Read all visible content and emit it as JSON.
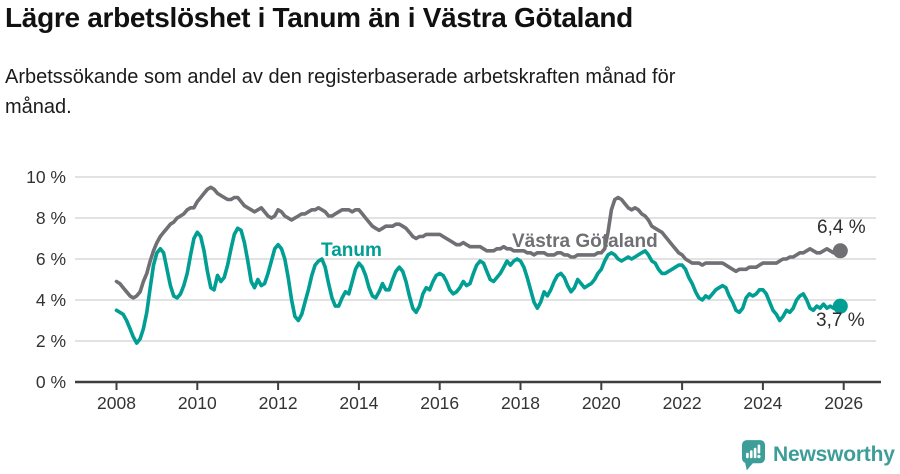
{
  "header": {
    "title": "Lägre arbetslöshet i Tanum än i Västra Götaland",
    "subtitle_line1": "Arbetssökande som andel av den registerbaserade arbetskraften månad för",
    "subtitle_line2": "månad."
  },
  "footer": {
    "brand": "Newsworthy",
    "brand_color": "#3d9e99"
  },
  "chart_data": {
    "type": "line",
    "title": "Lägre arbetslöshet i Tanum än i Västra Götaland",
    "subtitle": "Arbetssökande som andel av den registerbaserade arbetskraften månad för månad.",
    "x_unit": "month",
    "x_start": "2008-01",
    "x_end": "2025-12",
    "x_ticks": [
      "2008",
      "2010",
      "2012",
      "2014",
      "2016",
      "2018",
      "2020",
      "2022",
      "2024",
      "2026"
    ],
    "y_ticks": [
      "0 %",
      "2 %",
      "4 %",
      "6 %",
      "8 %",
      "10 %"
    ],
    "ylim": [
      0,
      10
    ],
    "grid": "horizontal",
    "axis_color": "#3f3f3f",
    "grid_color": "#e2e2e2",
    "tick_label_color": "#333333",
    "series": [
      {
        "name": "Västra Götaland",
        "color": "#6f6f74",
        "end_label": "6,4 %",
        "values": [
          4.9,
          4.8,
          4.6,
          4.4,
          4.2,
          4.1,
          4.2,
          4.4,
          4.9,
          5.3,
          5.9,
          6.4,
          6.8,
          7.1,
          7.3,
          7.5,
          7.7,
          7.8,
          8.0,
          8.1,
          8.2,
          8.4,
          8.5,
          8.5,
          8.8,
          9.0,
          9.2,
          9.4,
          9.5,
          9.4,
          9.2,
          9.1,
          9.0,
          8.9,
          8.9,
          9.0,
          9.0,
          8.8,
          8.6,
          8.5,
          8.4,
          8.3,
          8.4,
          8.5,
          8.3,
          8.1,
          8.0,
          8.1,
          8.4,
          8.3,
          8.1,
          8.0,
          7.9,
          8.0,
          8.1,
          8.2,
          8.2,
          8.3,
          8.4,
          8.4,
          8.5,
          8.4,
          8.3,
          8.1,
          8.1,
          8.2,
          8.3,
          8.4,
          8.4,
          8.4,
          8.3,
          8.4,
          8.4,
          8.2,
          8.0,
          7.8,
          7.6,
          7.5,
          7.4,
          7.5,
          7.6,
          7.6,
          7.6,
          7.7,
          7.7,
          7.6,
          7.5,
          7.3,
          7.1,
          7.0,
          7.1,
          7.1,
          7.2,
          7.2,
          7.2,
          7.2,
          7.2,
          7.1,
          7.0,
          6.9,
          6.8,
          6.7,
          6.7,
          6.8,
          6.7,
          6.6,
          6.6,
          6.6,
          6.6,
          6.5,
          6.4,
          6.4,
          6.4,
          6.5,
          6.5,
          6.6,
          6.5,
          6.5,
          6.4,
          6.4,
          6.4,
          6.4,
          6.3,
          6.3,
          6.2,
          6.3,
          6.3,
          6.3,
          6.2,
          6.2,
          6.2,
          6.3,
          6.3,
          6.2,
          6.2,
          6.1,
          6.1,
          6.2,
          6.2,
          6.2,
          6.2,
          6.2,
          6.2,
          6.3,
          6.3,
          6.5,
          7.3,
          8.4,
          8.9,
          9.0,
          8.9,
          8.7,
          8.5,
          8.4,
          8.5,
          8.4,
          8.2,
          8.1,
          7.9,
          7.6,
          7.5,
          7.4,
          7.3,
          7.1,
          6.9,
          6.7,
          6.5,
          6.3,
          6.2,
          6.0,
          5.9,
          5.8,
          5.8,
          5.8,
          5.7,
          5.8,
          5.8,
          5.8,
          5.8,
          5.8,
          5.8,
          5.7,
          5.6,
          5.5,
          5.4,
          5.5,
          5.5,
          5.5,
          5.6,
          5.6,
          5.6,
          5.7,
          5.8,
          5.8,
          5.8,
          5.8,
          5.8,
          5.9,
          6.0,
          6.0,
          6.1,
          6.1,
          6.2,
          6.3,
          6.3,
          6.4,
          6.5,
          6.4,
          6.3,
          6.3,
          6.4,
          6.5,
          6.4,
          6.3,
          6.4,
          6.4
        ]
      },
      {
        "name": "Tanum",
        "color": "#009e93",
        "end_label": "3,7 %",
        "values": [
          3.5,
          3.4,
          3.3,
          3.0,
          2.6,
          2.2,
          1.9,
          2.1,
          2.6,
          3.4,
          4.6,
          5.7,
          6.3,
          6.5,
          6.3,
          5.5,
          4.7,
          4.2,
          4.1,
          4.3,
          4.7,
          5.3,
          6.2,
          7.0,
          7.3,
          7.1,
          6.4,
          5.4,
          4.6,
          4.5,
          5.2,
          4.9,
          5.1,
          5.7,
          6.5,
          7.2,
          7.5,
          7.4,
          6.8,
          5.9,
          4.9,
          4.6,
          5.0,
          4.7,
          4.8,
          5.3,
          5.9,
          6.5,
          6.7,
          6.5,
          6.0,
          5.1,
          4.0,
          3.2,
          3.0,
          3.3,
          3.9,
          4.5,
          5.2,
          5.7,
          5.9,
          6.0,
          5.6,
          4.8,
          4.1,
          3.7,
          3.7,
          4.1,
          4.4,
          4.3,
          4.9,
          5.5,
          5.8,
          5.6,
          5.2,
          4.6,
          4.2,
          4.1,
          4.4,
          4.8,
          4.5,
          4.5,
          5.0,
          5.4,
          5.6,
          5.4,
          4.9,
          4.2,
          3.6,
          3.4,
          3.7,
          4.3,
          4.6,
          4.5,
          4.9,
          5.2,
          5.3,
          5.2,
          4.9,
          4.5,
          4.3,
          4.4,
          4.6,
          4.9,
          4.7,
          4.8,
          5.3,
          5.7,
          5.9,
          5.8,
          5.4,
          5.0,
          4.9,
          5.1,
          5.3,
          5.6,
          5.9,
          5.7,
          5.9,
          6.0,
          5.9,
          5.6,
          5.1,
          4.5,
          3.9,
          3.6,
          3.9,
          4.4,
          4.2,
          4.5,
          4.9,
          5.2,
          5.3,
          5.1,
          4.7,
          4.4,
          4.6,
          5.0,
          4.8,
          4.6,
          4.7,
          4.8,
          5.0,
          5.3,
          5.5,
          5.9,
          6.2,
          6.3,
          6.2,
          6.0,
          5.9,
          6.0,
          6.1,
          6.0,
          6.1,
          6.2,
          6.3,
          6.4,
          6.2,
          5.9,
          5.8,
          5.5,
          5.3,
          5.3,
          5.4,
          5.5,
          5.6,
          5.7,
          5.7,
          5.5,
          5.1,
          4.8,
          4.4,
          4.1,
          4.0,
          4.2,
          4.1,
          4.3,
          4.5,
          4.6,
          4.7,
          4.6,
          4.2,
          3.9,
          3.5,
          3.4,
          3.6,
          4.1,
          4.3,
          4.2,
          4.3,
          4.5,
          4.5,
          4.3,
          3.9,
          3.5,
          3.3,
          3.0,
          3.2,
          3.5,
          3.4,
          3.6,
          4.0,
          4.2,
          4.3,
          4.0,
          3.6,
          3.5,
          3.7,
          3.6,
          3.8,
          3.6,
          3.7,
          3.6,
          3.6,
          3.7
        ]
      }
    ]
  }
}
